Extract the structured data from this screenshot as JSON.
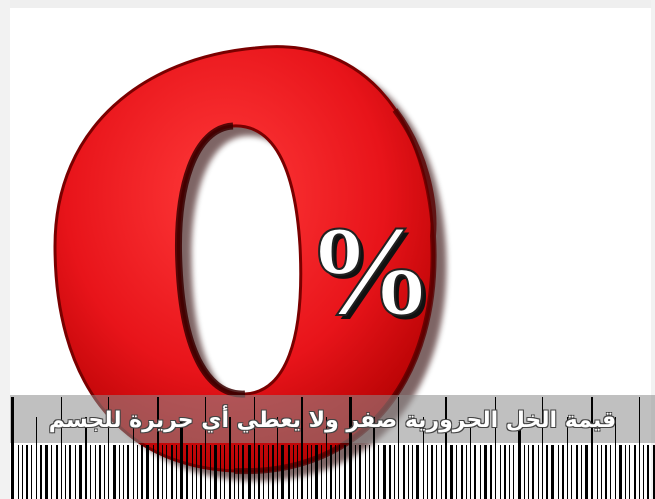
{
  "image": {
    "symbol_text": "%",
    "caption": "قيمة الخل الحرورية صفر ولا يعطي أي حريرة للجسم",
    "colors": {
      "digit_red": "#e8141a",
      "digit_dark": "#8a0000",
      "band_gray": "#8c8c8c",
      "caption_text": "#ffffff"
    }
  }
}
